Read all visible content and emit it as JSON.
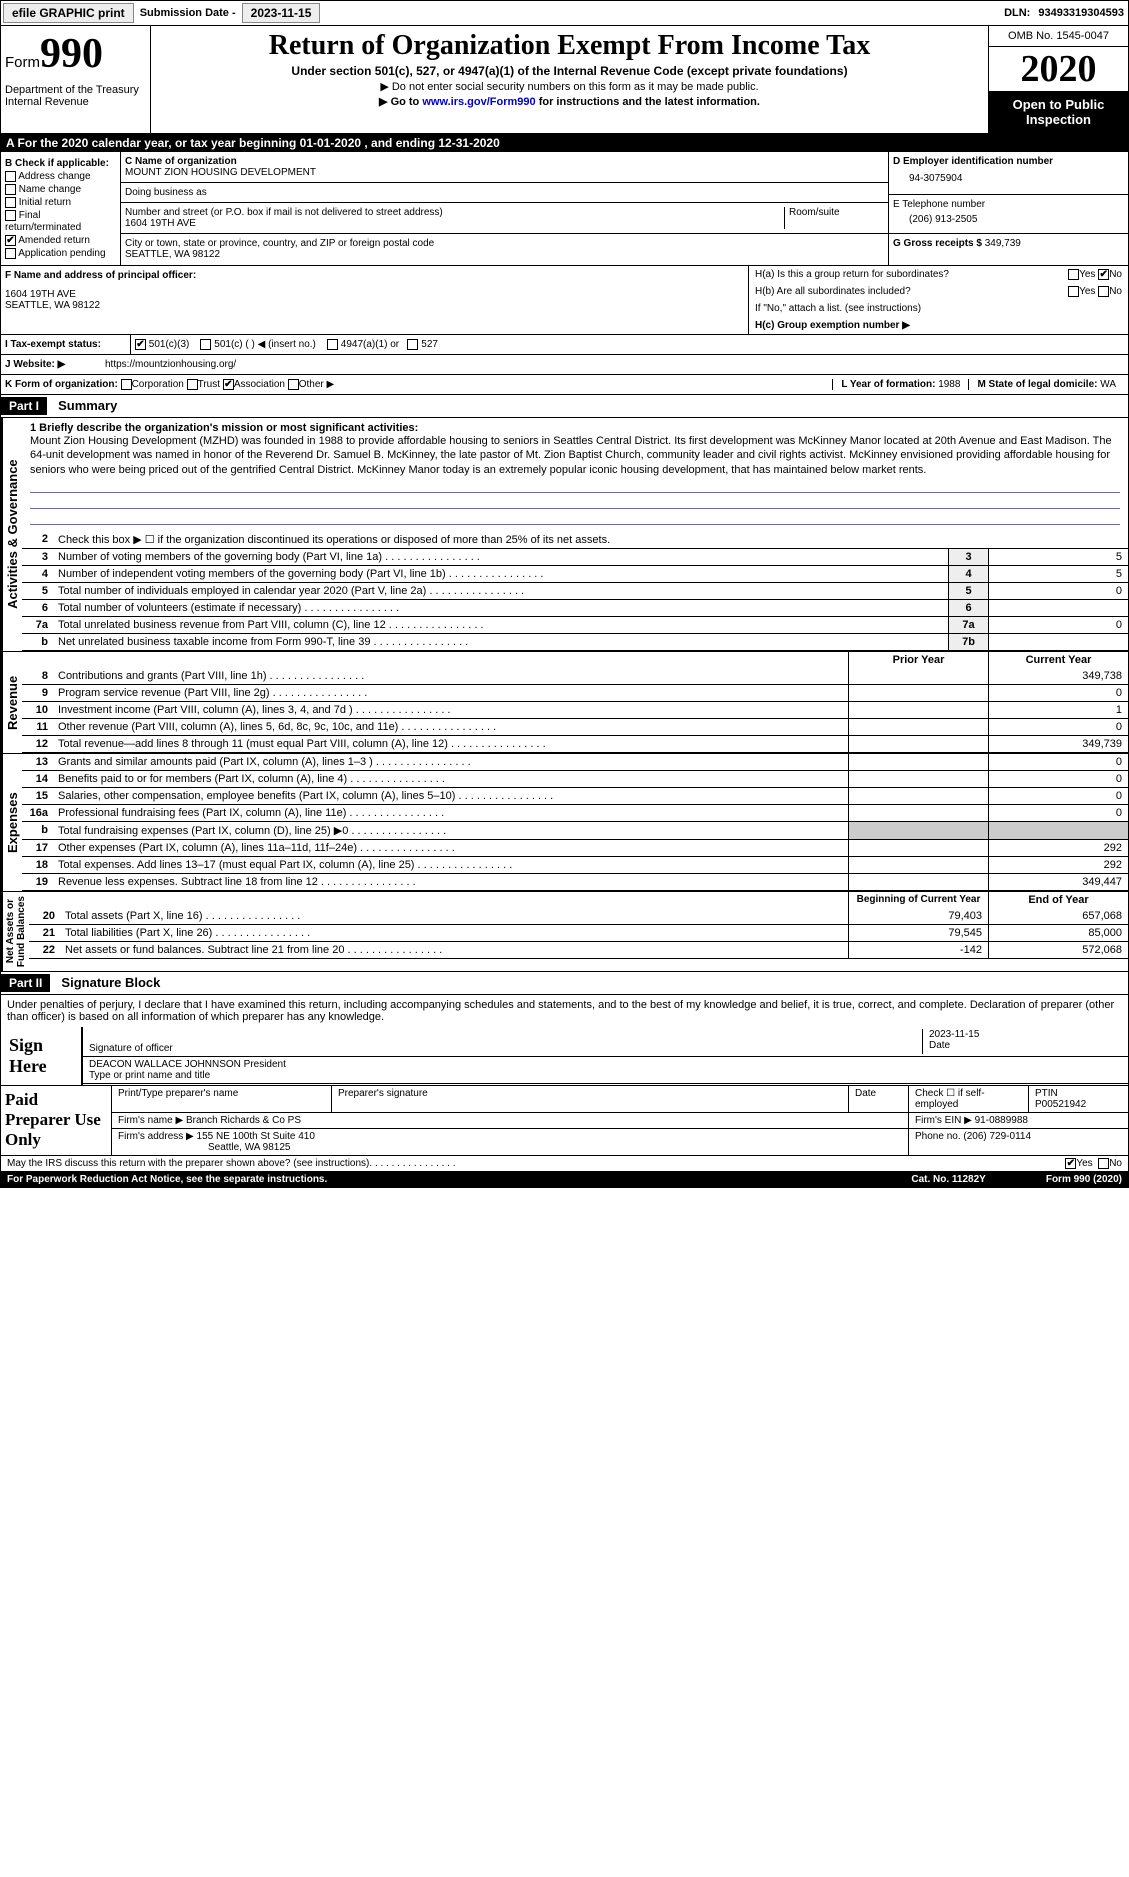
{
  "header": {
    "efile": "efile GRAPHIC print",
    "submission_label": "Submission Date - ",
    "submission_date": "2023-11-15",
    "dln_label": "DLN: ",
    "dln": "93493319304593"
  },
  "form": {
    "form_word": "Form",
    "form_num": "990",
    "dept": "Department of the Treasury\nInternal Revenue",
    "title": "Return of Organization Exempt From Income Tax",
    "subtitle": "Under section 501(c), 527, or 4947(a)(1) of the Internal Revenue Code (except private foundations)",
    "note1": "▶ Do not enter social security numbers on this form as it may be made public.",
    "note2_pre": "▶ Go to ",
    "note2_link": "www.irs.gov/Form990",
    "note2_post": " for instructions and the latest information.",
    "omb": "OMB No. 1545-0047",
    "year": "2020",
    "inspection": "Open to Public Inspection"
  },
  "rowA": "A   For the 2020 calendar year, or tax year beginning 01-01-2020   , and ending 12-31-2020",
  "sectionB": {
    "label": "B Check if applicable:",
    "items": [
      "Address change",
      "Name change",
      "Initial return",
      "Final return/terminated",
      "Amended return",
      "Application pending"
    ],
    "checked_idx": 4
  },
  "sectionC": {
    "name_label": "C Name of organization",
    "name": "MOUNT ZION HOUSING DEVELOPMENT",
    "dba_label": "Doing business as",
    "street_label": "Number and street (or P.O. box if mail is not delivered to street address)",
    "street": "1604 19TH AVE",
    "room_label": "Room/suite",
    "city_label": "City or town, state or province, country, and ZIP or foreign postal code",
    "city": "SEATTLE, WA  98122"
  },
  "sectionD": {
    "label": "D Employer identification number",
    "value": "94-3075904"
  },
  "sectionE": {
    "label": "E Telephone number",
    "value": "(206) 913-2505"
  },
  "sectionG": {
    "label": "G Gross receipts $ ",
    "value": "349,739"
  },
  "sectionF": {
    "label": "F  Name and address of principal officer:",
    "line1": "1604 19TH AVE",
    "line2": "SEATTLE, WA  98122"
  },
  "sectionH": {
    "ha": "H(a)  Is this a group return for subordinates?",
    "hb": "H(b)  Are all subordinates included?",
    "hb_note": "If \"No,\" attach a list. (see instructions)",
    "hc": "H(c)  Group exemption number ▶",
    "yes": "Yes",
    "no": "No"
  },
  "sectionI": {
    "label": "I    Tax-exempt status:",
    "opts": [
      "501(c)(3)",
      "501(c) (  ) ◀ (insert no.)",
      "4947(a)(1) or",
      "527"
    ]
  },
  "sectionJ": {
    "label": "J   Website: ▶",
    "value": "https://mountzionhousing.org/"
  },
  "sectionK": {
    "label": "K Form of organization:",
    "opts": [
      "Corporation",
      "Trust",
      "Association",
      "Other ▶"
    ],
    "checked_idx": 2
  },
  "sectionL": {
    "label": "L Year of formation: ",
    "value": "1988"
  },
  "sectionM": {
    "label": "M State of legal domicile: ",
    "value": "WA"
  },
  "part1": {
    "header": "Part I",
    "title": "Summary",
    "vert_ag": "Activities & Governance",
    "vert_rev": "Revenue",
    "vert_exp": "Expenses",
    "vert_net": "Net Assets or\nFund Balances",
    "line1_label": "1   Briefly describe the organization's mission or most significant activities:",
    "mission": "Mount Zion Housing Development (MZHD) was founded in 1988 to provide affordable housing to seniors in Seattles Central District. Its first development was McKinney Manor located at 20th Avenue and East Madison. The 64-unit development was named in honor of the Reverend Dr. Samuel B. McKinney, the late pastor of Mt. Zion Baptist Church, community leader and civil rights activist. McKinney envisioned providing affordable housing for seniors who were being priced out of the gentrified Central District. McKinney Manor today is an extremely popular iconic housing development, that has maintained below market rents.",
    "line2": "Check this box ▶ ☐  if the organization discontinued its operations or disposed of more than 25% of its net assets.",
    "lines_ag": [
      {
        "n": "3",
        "t": "Number of voting members of the governing body (Part VI, line 1a)",
        "box": "3",
        "v": "5"
      },
      {
        "n": "4",
        "t": "Number of independent voting members of the governing body (Part VI, line 1b)",
        "box": "4",
        "v": "5"
      },
      {
        "n": "5",
        "t": "Total number of individuals employed in calendar year 2020 (Part V, line 2a)",
        "box": "5",
        "v": "0"
      },
      {
        "n": "6",
        "t": "Total number of volunteers (estimate if necessary)",
        "box": "6",
        "v": ""
      },
      {
        "n": "7a",
        "t": "Total unrelated business revenue from Part VIII, column (C), line 12",
        "box": "7a",
        "v": "0"
      },
      {
        "n": "b",
        "t": "Net unrelated business taxable income from Form 990-T, line 39",
        "box": "7b",
        "v": ""
      }
    ],
    "col_prior": "Prior Year",
    "col_current": "Current Year",
    "lines_rev": [
      {
        "n": "8",
        "t": "Contributions and grants (Part VIII, line 1h)",
        "p": "",
        "c": "349,738"
      },
      {
        "n": "9",
        "t": "Program service revenue (Part VIII, line 2g)",
        "p": "",
        "c": "0"
      },
      {
        "n": "10",
        "t": "Investment income (Part VIII, column (A), lines 3, 4, and 7d )",
        "p": "",
        "c": "1"
      },
      {
        "n": "11",
        "t": "Other revenue (Part VIII, column (A), lines 5, 6d, 8c, 9c, 10c, and 11e)",
        "p": "",
        "c": "0"
      },
      {
        "n": "12",
        "t": "Total revenue—add lines 8 through 11 (must equal Part VIII, column (A), line 12)",
        "p": "",
        "c": "349,739"
      }
    ],
    "lines_exp": [
      {
        "n": "13",
        "t": "Grants and similar amounts paid (Part IX, column (A), lines 1–3 )",
        "p": "",
        "c": "0"
      },
      {
        "n": "14",
        "t": "Benefits paid to or for members (Part IX, column (A), line 4)",
        "p": "",
        "c": "0"
      },
      {
        "n": "15",
        "t": "Salaries, other compensation, employee benefits (Part IX, column (A), lines 5–10)",
        "p": "",
        "c": "0"
      },
      {
        "n": "16a",
        "t": "Professional fundraising fees (Part IX, column (A), line 11e)",
        "p": "",
        "c": "0"
      },
      {
        "n": "b",
        "t": "Total fundraising expenses (Part IX, column (D), line 25) ▶0",
        "p": "grey",
        "c": "grey"
      },
      {
        "n": "17",
        "t": "Other expenses (Part IX, column (A), lines 11a–11d, 11f–24e)",
        "p": "",
        "c": "292"
      },
      {
        "n": "18",
        "t": "Total expenses. Add lines 13–17 (must equal Part IX, column (A), line 25)",
        "p": "",
        "c": "292"
      },
      {
        "n": "19",
        "t": "Revenue less expenses. Subtract line 18 from line 12",
        "p": "",
        "c": "349,447"
      }
    ],
    "col_begin": "Beginning of Current Year",
    "col_end": "End of Year",
    "lines_net": [
      {
        "n": "20",
        "t": "Total assets (Part X, line 16)",
        "p": "79,403",
        "c": "657,068"
      },
      {
        "n": "21",
        "t": "Total liabilities (Part X, line 26)",
        "p": "79,545",
        "c": "85,000"
      },
      {
        "n": "22",
        "t": "Net assets or fund balances. Subtract line 21 from line 20",
        "p": "-142",
        "c": "572,068"
      }
    ]
  },
  "part2": {
    "header": "Part II",
    "title": "Signature Block",
    "declaration": "Under penalties of perjury, I declare that I have examined this return, including accompanying schedules and statements, and to the best of my knowledge and belief, it is true, correct, and complete. Declaration of preparer (other than officer) is based on all information of which preparer has any knowledge.",
    "sign_here": "Sign Here",
    "sig_officer": "Signature of officer",
    "sig_date": "2023-11-15",
    "date_label": "Date",
    "officer_name": "DEACON WALLACE JOHNNSON  President",
    "type_name": "Type or print name and title",
    "paid_prep": "Paid Preparer Use Only",
    "prep_name_label": "Print/Type preparer's name",
    "prep_sig_label": "Preparer's signature",
    "prep_date_label": "Date",
    "self_emp": "Check ☐ if self-employed",
    "ptin_label": "PTIN",
    "ptin": "P00521942",
    "firm_name_label": "Firm's name    ▶ ",
    "firm_name": "Branch Richards & Co PS",
    "firm_ein_label": "Firm's EIN ▶ ",
    "firm_ein": "91-0889988",
    "firm_addr_label": "Firm's address ▶ ",
    "firm_addr": "155 NE 100th St Suite 410",
    "firm_city": "Seattle, WA  98125",
    "phone_label": "Phone no. ",
    "phone": "(206) 729-0114",
    "discuss": "May the IRS discuss this return with the preparer shown above? (see instructions)",
    "yes": "Yes",
    "no": "No"
  },
  "footer": {
    "paperwork": "For Paperwork Reduction Act Notice, see the separate instructions.",
    "cat": "Cat. No. 11282Y",
    "form": "Form 990 (2020)"
  }
}
